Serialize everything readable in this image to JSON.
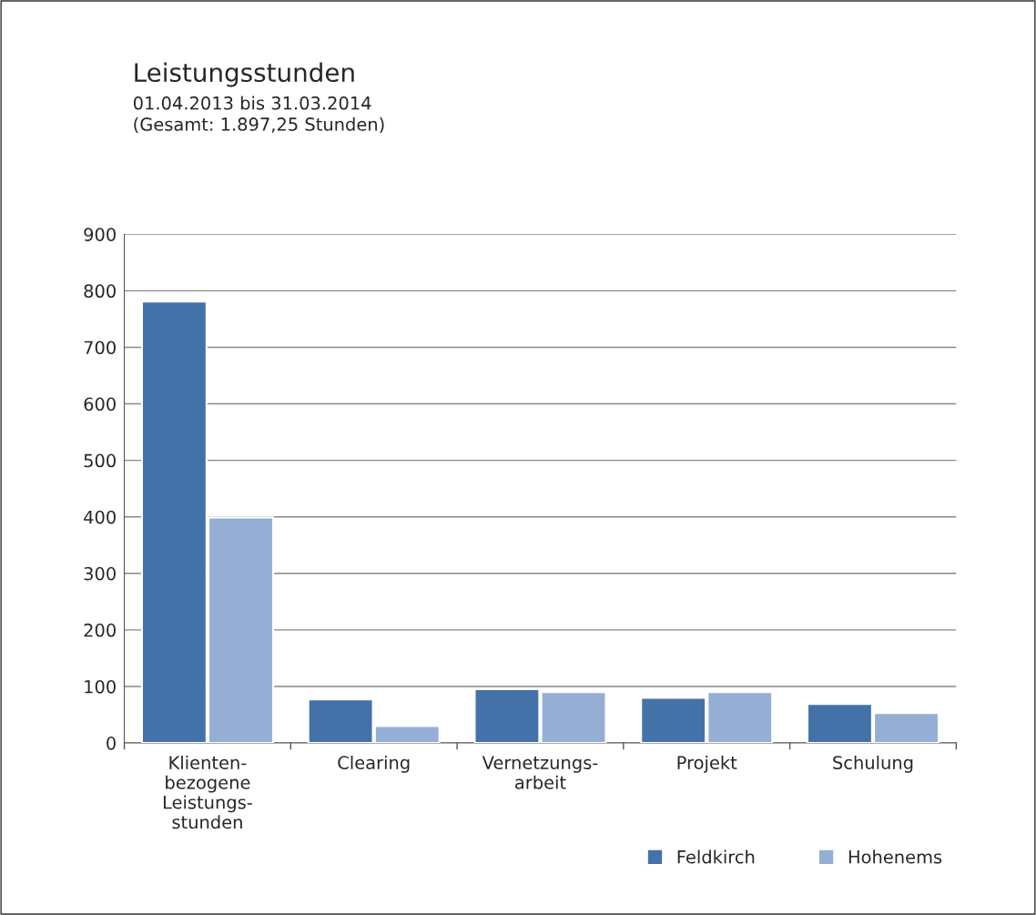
{
  "chart_data": {
    "type": "bar",
    "title": "Leistungsstunden",
    "subtitle": "01.04.2013 bis 31.03.2014\n(Gesamt: 1.897,25 Stunden)",
    "categories": [
      "Klienten-\nbezogene\nLeistungs-\nstunden",
      "Clearing",
      "Vernetzungs-\narbeit",
      "Projekt",
      "Schulung"
    ],
    "series": [
      {
        "name": "Feldkirch",
        "color": "#4472a8",
        "values": [
          781,
          77,
          95,
          80,
          69
        ]
      },
      {
        "name": "Hohenems",
        "color": "#95afd4",
        "values": [
          399,
          30,
          90,
          90,
          53
        ]
      }
    ],
    "ylim": [
      0,
      900
    ],
    "yticks": [
      0,
      100,
      200,
      300,
      400,
      500,
      600,
      700,
      800,
      900
    ],
    "grid": "y",
    "legend": "bottom right",
    "marker": "square"
  }
}
